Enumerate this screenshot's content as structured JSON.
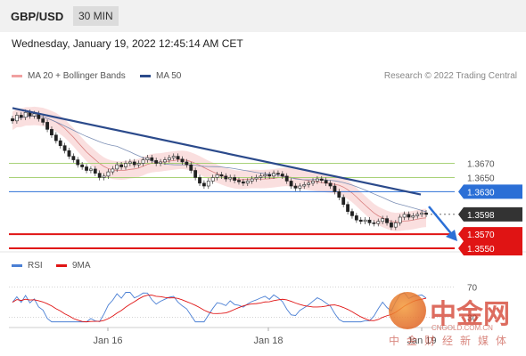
{
  "header": {
    "pair": "GBP/USD",
    "timeframe": "30 MIN"
  },
  "timestamp": "Wednesday, January 19, 2022 12:45:14 AM CET",
  "legend": {
    "ma20": "MA 20 + Bollinger Bands",
    "ma50": "MA 50",
    "credit": "Research © 2022 Trading Central"
  },
  "rsi_legend": {
    "rsi": "RSI",
    "ma9": "9MA"
  },
  "colors": {
    "bollinger": "#f7c9c9",
    "ma20": "#e88",
    "ma50": "#2b4a8b",
    "resistance": "#2b6fd6",
    "support": "#e01414",
    "pivot": "#333333",
    "target_green": "#9ccc65",
    "arrow": "#2b6fd6"
  },
  "watermark": {
    "name": "中金网",
    "url": "CNGOLD.COM.CN",
    "sub": "中金财经新媒体"
  },
  "chart_data": {
    "type": "candlestick",
    "x_tick_labels": [
      "Jan 16",
      "Jan 18",
      "Jan 19"
    ],
    "price_levels": [
      {
        "value": 1.367,
        "label": "1.3670",
        "kind": "resistance-target"
      },
      {
        "value": 1.365,
        "label": "1.3650",
        "kind": "resistance-target"
      },
      {
        "value": 1.363,
        "label": "1.3630",
        "kind": "pivot"
      },
      {
        "value": 1.3598,
        "label": "1.3598",
        "kind": "last-price"
      },
      {
        "value": 1.357,
        "label": "1.3570",
        "kind": "support-target"
      },
      {
        "value": 1.355,
        "label": "1.3550",
        "kind": "support-target"
      }
    ],
    "trendline": {
      "from": 1.3748,
      "to": 1.3626
    },
    "forecast": "down",
    "close_series": [
      1.373,
      1.3738,
      1.3735,
      1.3742,
      1.3737,
      1.374,
      1.3733,
      1.3728,
      1.3718,
      1.371,
      1.3702,
      1.3695,
      1.3688,
      1.368,
      1.3675,
      1.3668,
      1.3665,
      1.366,
      1.3662,
      1.3656,
      1.365,
      1.3652,
      1.3658,
      1.3662,
      1.3668,
      1.3665,
      1.367,
      1.3672,
      1.3668,
      1.367,
      1.3675,
      1.3678,
      1.3674,
      1.367,
      1.3672,
      1.3675,
      1.3678,
      1.368,
      1.3676,
      1.3672,
      1.3668,
      1.366,
      1.365,
      1.3642,
      1.3638,
      1.3645,
      1.365,
      1.3654,
      1.3652,
      1.3648,
      1.365,
      1.3646,
      1.3644,
      1.3642,
      1.3645,
      1.3648,
      1.365,
      1.3652,
      1.3654,
      1.3652,
      1.3656,
      1.3655,
      1.3652,
      1.3645,
      1.3638,
      1.3635,
      1.3638,
      1.364,
      1.3642,
      1.3645,
      1.3648,
      1.3646,
      1.3642,
      1.3638,
      1.363,
      1.3622,
      1.3612,
      1.3602,
      1.3596,
      1.359,
      1.3588,
      1.359,
      1.3586,
      1.3585,
      1.3588,
      1.3592,
      1.3586,
      1.358,
      1.3586,
      1.3594,
      1.3598,
      1.3594,
      1.3596,
      1.3598,
      1.36,
      1.3598
    ],
    "rsi": {
      "levels": [
        70,
        30
      ],
      "level_labels": [
        "70",
        "30"
      ]
    }
  }
}
